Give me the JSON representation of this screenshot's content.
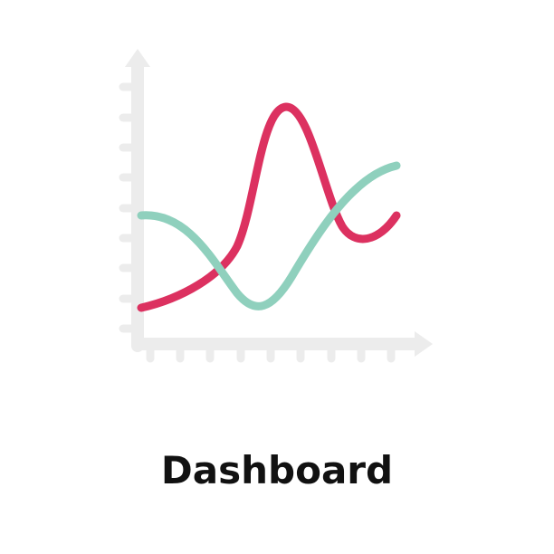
{
  "caption": "Dashboard",
  "colors": {
    "axis": "#ececec",
    "series_pink": "#dc3160",
    "series_teal": "#8fd0bd",
    "text": "#111111",
    "background": "#ffffff"
  },
  "icons": [
    "line-chart-icon"
  ]
}
